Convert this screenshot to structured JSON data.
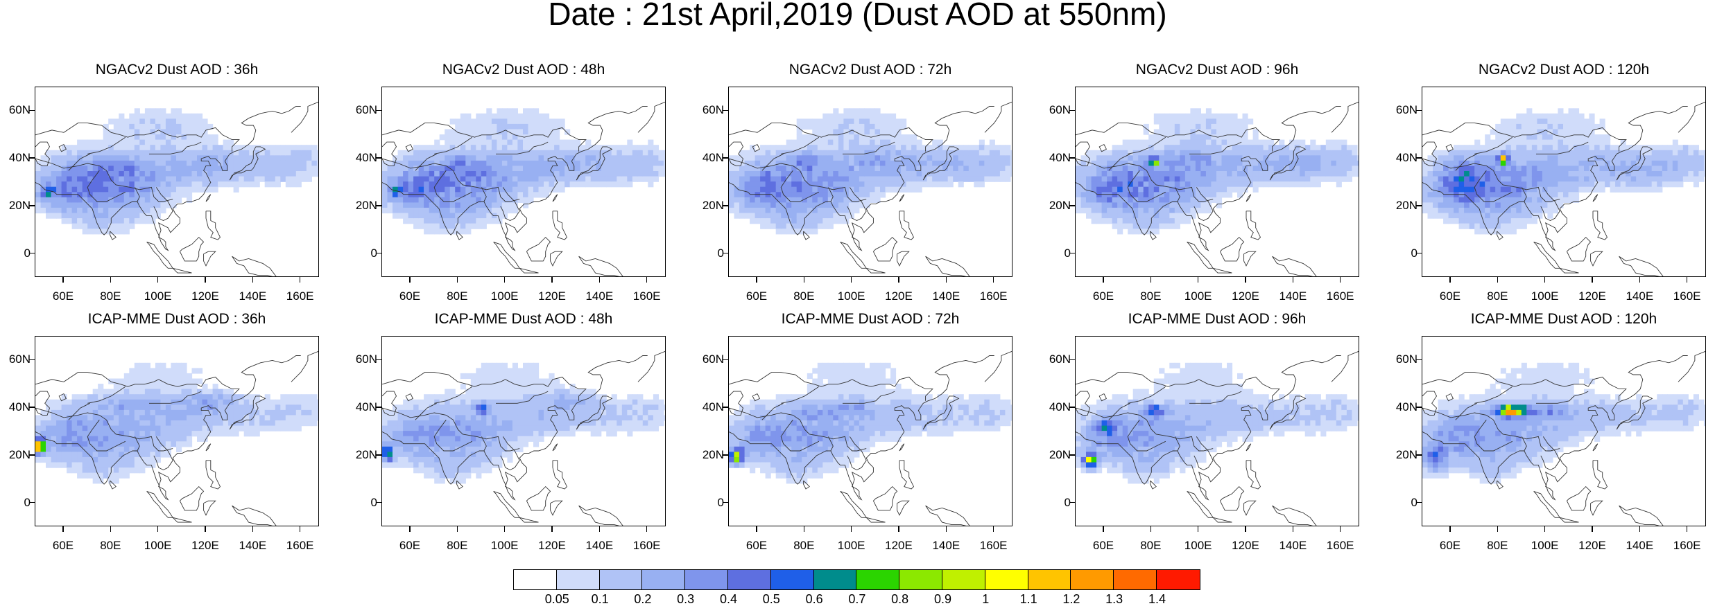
{
  "figure_title": "Date : 21st April,2019 (Dust AOD at 550nm)",
  "panels": [
    {
      "title": "NGACv2 Dust AOD : 36h"
    },
    {
      "title": "NGACv2 Dust AOD : 48h"
    },
    {
      "title": "NGACv2 Dust AOD : 72h"
    },
    {
      "title": "NGACv2 Dust AOD : 96h"
    },
    {
      "title": "NGACv2 Dust AOD : 120h"
    },
    {
      "title": "ICAP-MME Dust AOD : 36h"
    },
    {
      "title": "ICAP-MME Dust AOD : 48h"
    },
    {
      "title": "ICAP-MME Dust AOD : 72h"
    },
    {
      "title": "ICAP-MME Dust AOD : 96h"
    },
    {
      "title": "ICAP-MME Dust AOD : 120h"
    }
  ],
  "axes": {
    "x_ticks": [
      "60E",
      "80E",
      "100E",
      "120E",
      "140E",
      "160E"
    ],
    "y_ticks": [
      "60N",
      "40N",
      "20N",
      "0"
    ]
  },
  "colorbar": {
    "labels": [
      "0.05",
      "0.1",
      "0.2",
      "0.3",
      "0.4",
      "0.5",
      "0.6",
      "0.7",
      "0.8",
      "0.9",
      "1",
      "1.1",
      "1.2",
      "1.3",
      "1.4"
    ],
    "colors": [
      "#ffffff",
      "#d0dcfa",
      "#b0c3f6",
      "#98b0f2",
      "#7f95ec",
      "#5e6fe0",
      "#1f5fe8",
      "#008c8c",
      "#2bd400",
      "#8ce800",
      "#c0f000",
      "#ffff00",
      "#ffc400",
      "#ff9a00",
      "#ff6a00",
      "#ff1a00"
    ]
  }
}
